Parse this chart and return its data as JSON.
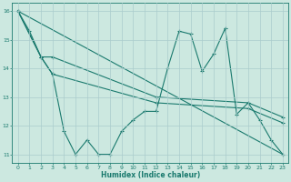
{
  "xlabel": "Humidex (Indice chaleur)",
  "bg_color": "#cce8e0",
  "grid_color": "#aacccc",
  "line_color": "#1a7a6e",
  "xlim": [
    -0.5,
    23.5
  ],
  "ylim": [
    10.7,
    16.3
  ],
  "yticks": [
    11,
    12,
    13,
    14,
    15,
    16
  ],
  "xticks": [
    0,
    1,
    2,
    3,
    4,
    5,
    6,
    7,
    8,
    9,
    10,
    11,
    12,
    13,
    14,
    15,
    16,
    17,
    18,
    19,
    20,
    21,
    22,
    23
  ],
  "series": [
    {
      "x": [
        0,
        1,
        2,
        3,
        4,
        5,
        6,
        7,
        8,
        9,
        10,
        11,
        12,
        13,
        14,
        15,
        16,
        17,
        18,
        19,
        20,
        21,
        22,
        23
      ],
      "y": [
        16.0,
        15.3,
        14.4,
        13.8,
        11.8,
        11.0,
        11.5,
        11.0,
        11.0,
        11.8,
        12.2,
        12.5,
        12.5,
        14.0,
        15.3,
        15.2,
        13.9,
        14.5,
        15.4,
        12.4,
        12.8,
        12.2,
        11.5,
        11.0
      ]
    },
    {
      "x": [
        0,
        2,
        3,
        12,
        20,
        23
      ],
      "y": [
        16.0,
        14.4,
        14.4,
        13.0,
        12.8,
        12.3
      ]
    },
    {
      "x": [
        0,
        2,
        3,
        12,
        20,
        23
      ],
      "y": [
        16.0,
        14.4,
        13.8,
        12.8,
        12.6,
        12.1
      ]
    },
    {
      "x": [
        0,
        23
      ],
      "y": [
        16.0,
        11.0
      ]
    }
  ]
}
